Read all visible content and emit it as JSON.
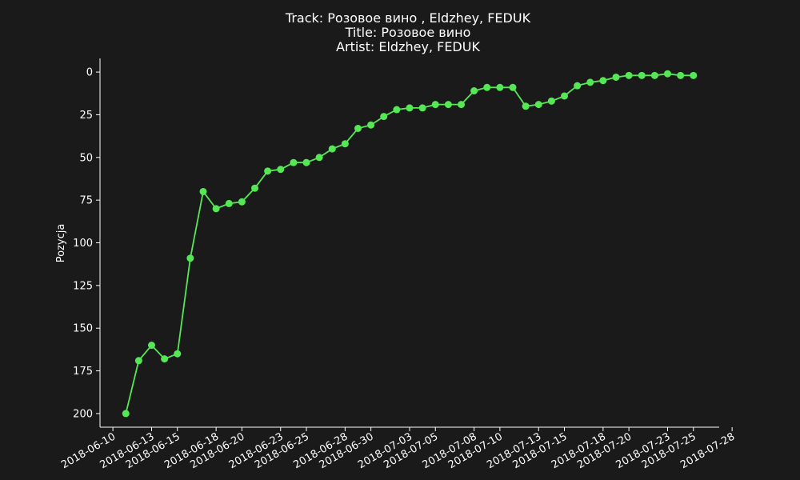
{
  "chart_data": {
    "type": "line",
    "title_lines": [
      "Track:  Розовое вино , Eldzhey, FEDUK",
      "Title:  Розовое вино",
      "Artist:  Eldzhey, FEDUK"
    ],
    "xlabel": "",
    "ylabel": "Pozycja",
    "y_inverted": true,
    "ylim": [
      208,
      -8
    ],
    "yticks": [
      0,
      25,
      50,
      75,
      100,
      125,
      150,
      175,
      200
    ],
    "xticks": [
      "2018-06-10",
      "2018-06-13",
      "2018-06-15",
      "2018-06-18",
      "2018-06-20",
      "2018-06-23",
      "2018-06-25",
      "2018-06-28",
      "2018-06-30",
      "2018-07-03",
      "2018-07-05",
      "2018-07-08",
      "2018-07-10",
      "2018-07-13",
      "2018-07-15",
      "2018-07-18",
      "2018-07-20",
      "2018-07-23",
      "2018-07-25",
      "2018-07-28"
    ],
    "xlim": [
      "2018-06-09",
      "2018-07-27"
    ],
    "grid": false,
    "line_color": "#55e855",
    "series": [
      {
        "points": [
          [
            "2018-06-11",
            200
          ],
          [
            "2018-06-12",
            169
          ],
          [
            "2018-06-13",
            160
          ],
          [
            "2018-06-14",
            168
          ],
          [
            "2018-06-15",
            165
          ],
          [
            "2018-06-16",
            109
          ],
          [
            "2018-06-17",
            70
          ],
          [
            "2018-06-18",
            80
          ],
          [
            "2018-06-19",
            77
          ],
          [
            "2018-06-20",
            76
          ],
          [
            "2018-06-21",
            68
          ],
          [
            "2018-06-22",
            58
          ],
          [
            "2018-06-23",
            57
          ],
          [
            "2018-06-24",
            53
          ],
          [
            "2018-06-25",
            53
          ],
          [
            "2018-06-26",
            50
          ],
          [
            "2018-06-27",
            45
          ],
          [
            "2018-06-28",
            42
          ],
          [
            "2018-06-29",
            33
          ],
          [
            "2018-06-30",
            31
          ],
          [
            "2018-07-01",
            26
          ],
          [
            "2018-07-02",
            22
          ],
          [
            "2018-07-03",
            21
          ],
          [
            "2018-07-04",
            21
          ],
          [
            "2018-07-05",
            19
          ],
          [
            "2018-07-06",
            19
          ],
          [
            "2018-07-07",
            19
          ],
          [
            "2018-07-08",
            11
          ],
          [
            "2018-07-09",
            9
          ],
          [
            "2018-07-10",
            9
          ],
          [
            "2018-07-11",
            9
          ],
          [
            "2018-07-12",
            20
          ],
          [
            "2018-07-13",
            19
          ],
          [
            "2018-07-14",
            17
          ],
          [
            "2018-07-15",
            14
          ],
          [
            "2018-07-16",
            8
          ],
          [
            "2018-07-17",
            6
          ],
          [
            "2018-07-18",
            5
          ],
          [
            "2018-07-19",
            3
          ],
          [
            "2018-07-20",
            2
          ],
          [
            "2018-07-21",
            2
          ],
          [
            "2018-07-22",
            2
          ],
          [
            "2018-07-23",
            1
          ],
          [
            "2018-07-24",
            2
          ],
          [
            "2018-07-25",
            2
          ]
        ]
      }
    ]
  }
}
